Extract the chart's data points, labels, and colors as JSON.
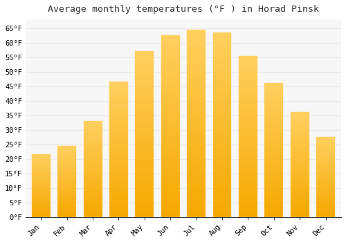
{
  "title": "Average monthly temperatures (°F ) in Horad Pinsk",
  "months": [
    "Jan",
    "Feb",
    "Mar",
    "Apr",
    "May",
    "Jun",
    "Jul",
    "Aug",
    "Sep",
    "Oct",
    "Nov",
    "Dec"
  ],
  "values": [
    21.5,
    24.5,
    33.0,
    46.5,
    57.0,
    62.5,
    64.5,
    63.5,
    55.5,
    46.0,
    36.0,
    27.5
  ],
  "bar_color_top": "#FFD060",
  "bar_color_bottom": "#F5A800",
  "bar_edge_color": "#FFD060",
  "ylim": [
    0,
    68
  ],
  "yticks": [
    0,
    5,
    10,
    15,
    20,
    25,
    30,
    35,
    40,
    45,
    50,
    55,
    60,
    65
  ],
  "background_color": "#ffffff",
  "plot_bg_color": "#f7f7f7",
  "grid_color": "#e8e8e8",
  "title_fontsize": 9.5,
  "tick_fontsize": 7.5,
  "font_family": "monospace",
  "spine_color": "#333333"
}
